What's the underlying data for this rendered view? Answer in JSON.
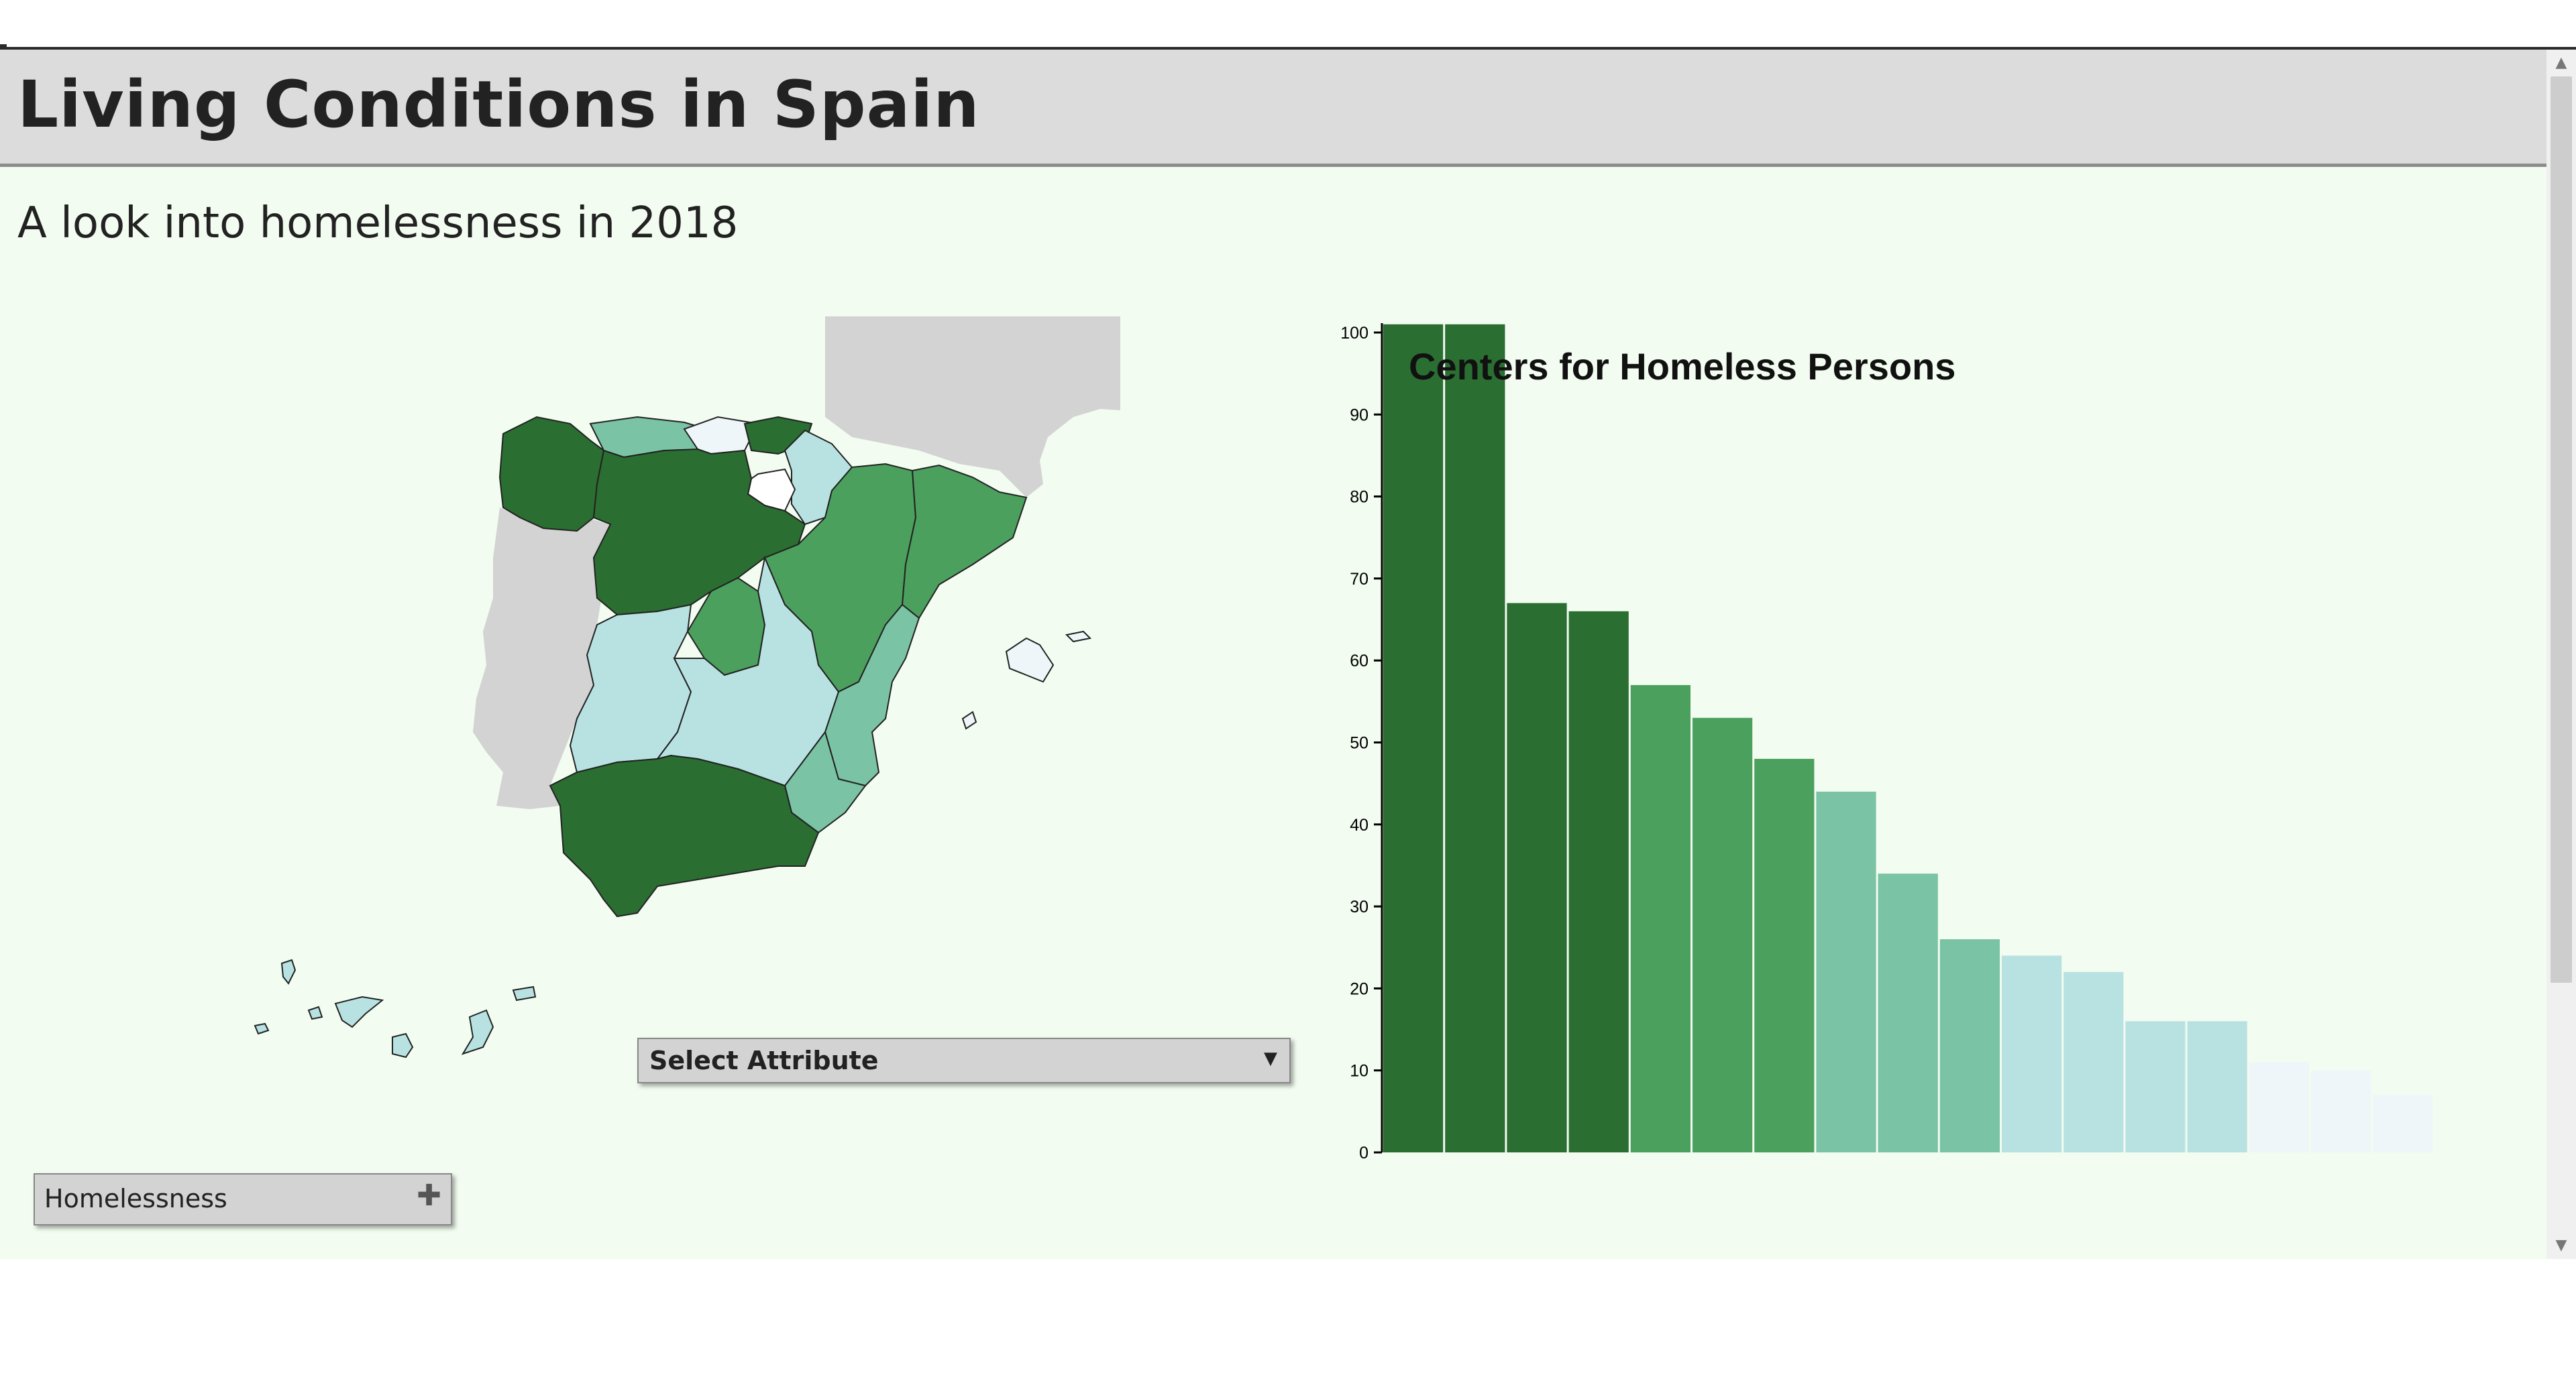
{
  "header": {
    "title": "Living Conditions in Spain"
  },
  "subtitle": "A look into homelessness in 2018",
  "controls": {
    "select_label": "Select Attribute",
    "accordion_label": "Homelessness"
  },
  "icons": {
    "select_caret": "▼",
    "accordion_plus": "✚",
    "scroll_up": "▲",
    "scroll_down": "▼"
  },
  "colors": {
    "dark_green": "#2a6e31",
    "green": "#4ba05e",
    "light_green": "#7ac3a5",
    "pale_cyan": "#b8e2e2",
    "near_white": "#eef6f9",
    "gray_land": "#d3d3d3"
  },
  "chart_data": {
    "type": "bar",
    "title": "Centers for Homeless Persons",
    "xlabel": "",
    "ylabel": "",
    "ylim": [
      0,
      100
    ],
    "yticks": [
      0,
      10,
      20,
      30,
      40,
      50,
      60,
      70,
      80,
      90,
      100
    ],
    "values": [
      101,
      101,
      67,
      66,
      57,
      53,
      48,
      44,
      34,
      26,
      24,
      22,
      16,
      16,
      11,
      10,
      7
    ],
    "colors": [
      "#2a6e31",
      "#2a6e31",
      "#2a6e31",
      "#2a6e31",
      "#4ba05e",
      "#4ba05e",
      "#4ba05e",
      "#7ac3a5",
      "#7ac3a5",
      "#7ac3a5",
      "#b8e2e2",
      "#b8e2e2",
      "#b8e2e2",
      "#b8e2e2",
      "#eef6f9",
      "#eef6f9",
      "#eef6f9"
    ]
  }
}
